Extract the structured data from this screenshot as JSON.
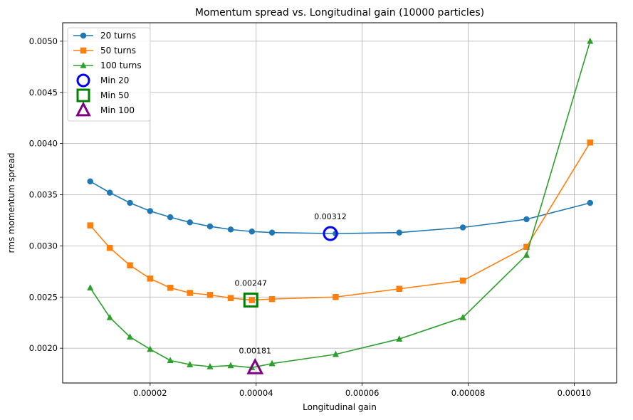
{
  "chart_data": {
    "type": "line",
    "title": "Momentum spread vs. Longitudinal gain (10000 particles)",
    "xlabel": "Longitudinal gain",
    "ylabel": "rms momentum spread",
    "xlim": [
      3.5e-06,
      0.000108
    ],
    "ylim": [
      0.00166,
      0.00518
    ],
    "x_ticks": [
      2e-05,
      4e-05,
      6e-05,
      8e-05,
      0.0001
    ],
    "x_tick_labels": [
      "0.00002",
      "0.00004",
      "0.00006",
      "0.00008",
      "0.00010"
    ],
    "y_ticks": [
      0.002,
      0.0025,
      0.003,
      0.0035,
      0.004,
      0.0045,
      0.005
    ],
    "y_tick_labels": [
      "0.0020",
      "0.0025",
      "0.0030",
      "0.0035",
      "0.0040",
      "0.0045",
      "0.0050"
    ],
    "grid": true,
    "legend_position": "top-left",
    "series": [
      {
        "name": "20 turns",
        "color": "#1f77b4",
        "marker": "circle",
        "x": [
          8.7e-06,
          1.24e-05,
          1.62e-05,
          2e-05,
          2.38e-05,
          2.75e-05,
          3.13e-05,
          3.52e-05,
          3.92e-05,
          4.3e-05,
          5.5e-05,
          6.7e-05,
          7.9e-05,
          9.1e-05,
          0.000103
        ],
        "y": [
          0.00363,
          0.00352,
          0.00342,
          0.00334,
          0.00328,
          0.00323,
          0.00319,
          0.00316,
          0.00314,
          0.00313,
          0.00312,
          0.00313,
          0.00318,
          0.00326,
          0.00342
        ]
      },
      {
        "name": "50 turns",
        "color": "#ff7f0e",
        "marker": "square",
        "x": [
          8.7e-06,
          1.24e-05,
          1.62e-05,
          2e-05,
          2.38e-05,
          2.75e-05,
          3.13e-05,
          3.52e-05,
          3.92e-05,
          4.3e-05,
          5.5e-05,
          6.7e-05,
          7.9e-05,
          9.1e-05,
          0.000103
        ],
        "y": [
          0.0032,
          0.00298,
          0.00281,
          0.00268,
          0.00259,
          0.00254,
          0.00252,
          0.00249,
          0.00247,
          0.00248,
          0.0025,
          0.00258,
          0.00266,
          0.00299,
          0.00401
        ]
      },
      {
        "name": "100 turns",
        "color": "#2ca02c",
        "marker": "triangle",
        "x": [
          8.7e-06,
          1.24e-05,
          1.62e-05,
          2e-05,
          2.38e-05,
          2.75e-05,
          3.13e-05,
          3.52e-05,
          3.92e-05,
          4.3e-05,
          5.5e-05,
          6.7e-05,
          7.9e-05,
          9.1e-05,
          0.000103
        ],
        "y": [
          0.00259,
          0.0023,
          0.00211,
          0.00199,
          0.00188,
          0.00184,
          0.00182,
          0.00183,
          0.00181,
          0.00185,
          0.00194,
          0.00209,
          0.0023,
          0.00291,
          0.005
        ]
      }
    ],
    "minima": [
      {
        "name": "Min 20",
        "x": 5.4e-05,
        "y": 0.00312,
        "label": "0.00312",
        "color": "#0000ff",
        "marker": "circle"
      },
      {
        "name": "Min 50",
        "x": 3.9e-05,
        "y": 0.00247,
        "label": "0.00247",
        "color": "#008000",
        "marker": "square"
      },
      {
        "name": "Min 100",
        "x": 3.98e-05,
        "y": 0.00181,
        "label": "0.00181",
        "color": "#800080",
        "marker": "triangle"
      }
    ]
  }
}
